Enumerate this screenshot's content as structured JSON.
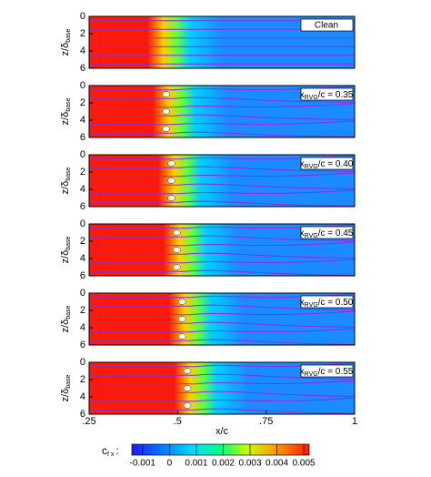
{
  "chart_data": [
    {
      "type": "contour",
      "annotation": "Clean",
      "ylabel": "z/δ",
      "ylabel_sub": "base",
      "ylim": [
        0,
        6
      ],
      "yticks": [
        0,
        2,
        4,
        6
      ],
      "xlim": [
        0.25,
        1
      ]
    },
    {
      "type": "contour",
      "annotation": {
        "base": "x",
        "sub": "RVG",
        "rest": "/c = 0.35"
      },
      "ylabel": "z/δ",
      "ylabel_sub": "base",
      "ylim": [
        0,
        6
      ],
      "yticks": [
        0,
        2,
        4,
        6
      ],
      "xlim": [
        0.25,
        1
      ]
    },
    {
      "type": "contour",
      "annotation": {
        "base": "x",
        "sub": "RVG",
        "rest": "/c = 0.40"
      },
      "ylabel": "z/δ",
      "ylabel_sub": "base",
      "ylim": [
        0,
        6
      ],
      "yticks": [
        0,
        2,
        4,
        6
      ],
      "xlim": [
        0.25,
        1
      ]
    },
    {
      "type": "contour",
      "annotation": {
        "base": "x",
        "sub": "RVG",
        "rest": "/c = 0.45"
      },
      "ylabel": "z/δ",
      "ylabel_sub": "base",
      "ylim": [
        0,
        6
      ],
      "yticks": [
        0,
        2,
        4,
        6
      ],
      "xlim": [
        0.25,
        1
      ]
    },
    {
      "type": "contour",
      "annotation": {
        "base": "x",
        "sub": "RVG",
        "rest": "/c = 0.50"
      },
      "ylabel": "z/δ",
      "ylabel_sub": "base",
      "ylim": [
        0,
        6
      ],
      "yticks": [
        0,
        2,
        4,
        6
      ],
      "xlim": [
        0.25,
        1
      ]
    },
    {
      "type": "contour",
      "annotation": {
        "base": "x",
        "sub": "RVG",
        "rest": "/c = 0.55"
      },
      "ylabel": "z/δ",
      "ylabel_sub": "base",
      "ylim": [
        0,
        6
      ],
      "yticks": [
        0,
        2,
        4,
        6
      ],
      "xlim": [
        0.25,
        1
      ],
      "xlabel": "x/c",
      "xticks": [
        {
          "value": 0.25,
          "label": ".25"
        },
        {
          "value": 0.5,
          "label": ".5"
        },
        {
          "value": 0.75,
          "label": ".75"
        },
        1
      ]
    },
    {
      "type": "colorbar",
      "label": "c",
      "label_sub": "f x",
      "label_sep": ":",
      "clim": [
        -0.0014,
        0.0052
      ],
      "ticks": [
        -0.001,
        0,
        0.001,
        0.002,
        0.003,
        0.004,
        0.005
      ]
    }
  ]
}
